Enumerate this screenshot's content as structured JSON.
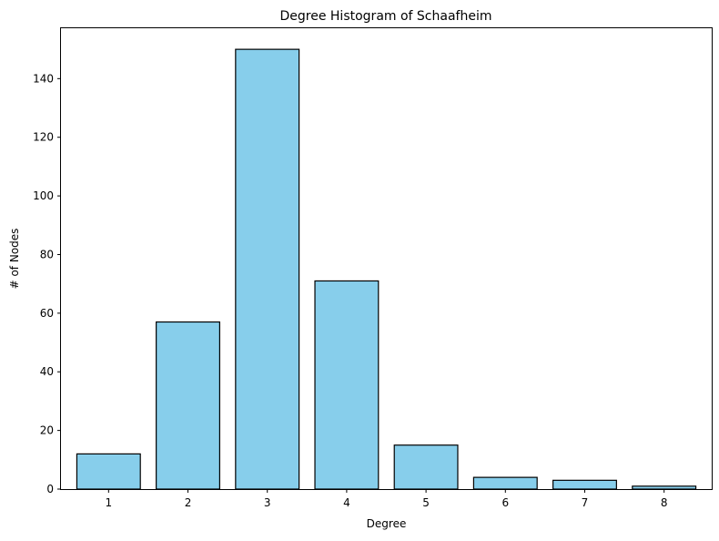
{
  "chart_data": {
    "type": "bar",
    "title": "Degree Histogram of Schaafheim",
    "xlabel": "Degree",
    "ylabel": "# of Nodes",
    "categories": [
      "1",
      "2",
      "3",
      "4",
      "5",
      "6",
      "7",
      "8"
    ],
    "values": [
      12,
      57,
      150,
      71,
      15,
      4,
      3,
      1
    ],
    "ylim": [
      0,
      157.5
    ],
    "yticks": [
      0,
      20,
      40,
      60,
      80,
      100,
      120,
      140
    ],
    "ytick_labels": [
      "0",
      "20",
      "40",
      "60",
      "80",
      "100",
      "120",
      "140"
    ],
    "grid": false,
    "legend": "none",
    "bar_color": "#87ceeb",
    "edge_color": "#000000"
  }
}
